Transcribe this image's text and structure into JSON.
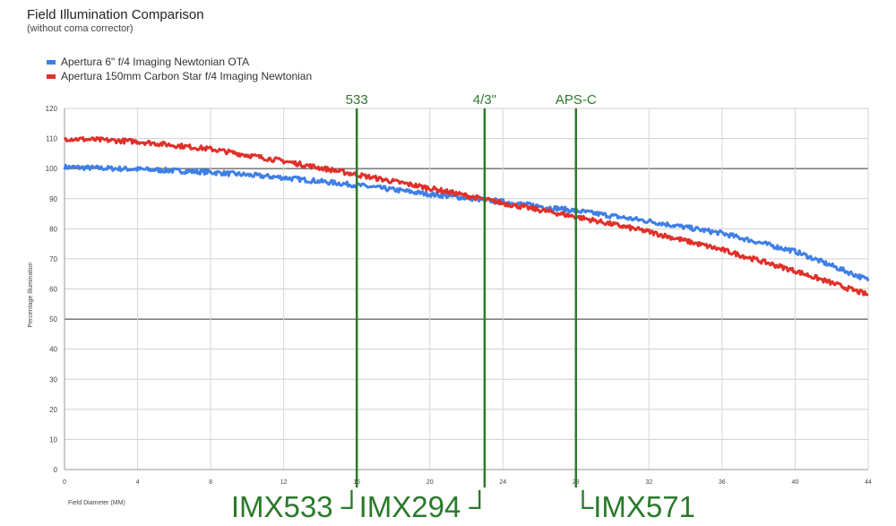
{
  "chart_data": {
    "type": "line",
    "title": "Field Illumination Comparison",
    "subtitle": "(without coma corrector)",
    "xlabel": "Field Diameter (MM)",
    "ylabel": "Percentage Illumination",
    "xlim": [
      0,
      44
    ],
    "ylim": [
      0,
      120
    ],
    "x_ticks": [
      "0",
      "4",
      "8",
      "12",
      "16",
      "20",
      "24",
      "28",
      "32",
      "36",
      "40",
      "44"
    ],
    "y_ticks": [
      "0",
      "10",
      "20",
      "30",
      "40",
      "50",
      "60",
      "70",
      "80",
      "90",
      "100",
      "110",
      "120"
    ],
    "grid": true,
    "legend_position": "top-left",
    "series": [
      {
        "name": "Apertura 6\" f/4 Imaging Newtonian OTA",
        "color": "#3f7fe6",
        "x": [
          0,
          4,
          8,
          12,
          16,
          20,
          24,
          28,
          32,
          36,
          40,
          44
        ],
        "values": [
          100.5,
          99.8,
          98.8,
          97,
          94.5,
          91.5,
          89,
          86,
          82.5,
          78.5,
          72.5,
          63
        ]
      },
      {
        "name": "Apertura 150mm Carbon Star f/4 Imaging Newtonian",
        "color": "#e0302a",
        "x": [
          0,
          4,
          8,
          12,
          16,
          20,
          24,
          28,
          32,
          36,
          40,
          44
        ],
        "values": [
          110,
          109,
          106.5,
          102.5,
          98,
          93.5,
          88.5,
          84,
          79,
          73,
          66,
          58
        ]
      }
    ],
    "markers": [
      {
        "x": 16,
        "top_label": "533",
        "bottom_label": "IMX533 ┘",
        "color": "#2a7a2a"
      },
      {
        "x": 23,
        "top_label": "4/3\"",
        "bottom_label": "IMX294 ┘",
        "color": "#2a7a2a"
      },
      {
        "x": 28,
        "top_label": "APS-C",
        "bottom_label": "└IMX571",
        "color": "#2a7a2a"
      }
    ]
  }
}
